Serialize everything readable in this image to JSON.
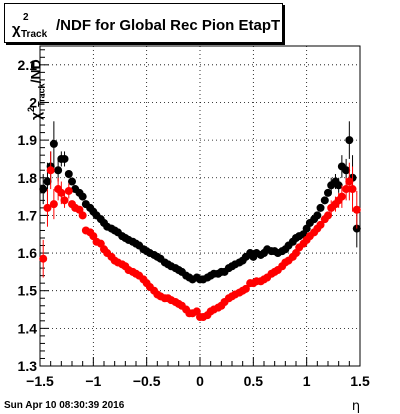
{
  "title": {
    "symbol": "χ",
    "superscript": "2",
    "subscript": "Track",
    "text": "/NDF for Global Rec Pion EtapT"
  },
  "footer_timestamp": "Sun Apr 10 08:30:39 2016",
  "chart_data": {
    "type": "scatter",
    "title": "χ²Track/NDF for Global Rec Pion EtapT",
    "xlabel": "η",
    "ylabel": "χ²Track/NDF",
    "xlim": [
      -1.5,
      1.5
    ],
    "ylim": [
      1.3,
      2.15
    ],
    "x_ticks": [
      -1.5,
      -1,
      -0.5,
      0,
      0.5,
      1,
      1.5
    ],
    "x_tick_labels": [
      "−1.5",
      "−1",
      "−0.5",
      "0",
      "0.5",
      "1",
      "1.5"
    ],
    "y_ticks": [
      1.3,
      1.4,
      1.5,
      1.6,
      1.7,
      1.8,
      1.9,
      2,
      2.1
    ],
    "y_tick_labels": [
      "1.3",
      "1.4",
      "1.5",
      "1.6",
      "1.7",
      "1.8",
      "1.9",
      "2",
      "2.1"
    ],
    "grid": true,
    "series": [
      {
        "color": "#000000",
        "x": [
          -1.47,
          -1.43,
          -1.4,
          -1.37,
          -1.33,
          -1.3,
          -1.27,
          -1.23,
          -1.2,
          -1.17,
          -1.13,
          -1.1,
          -1.07,
          -1.03,
          -1.0,
          -0.97,
          -0.93,
          -0.9,
          -0.87,
          -0.83,
          -0.8,
          -0.77,
          -0.73,
          -0.7,
          -0.67,
          -0.63,
          -0.6,
          -0.57,
          -0.53,
          -0.5,
          -0.47,
          -0.43,
          -0.4,
          -0.37,
          -0.33,
          -0.3,
          -0.27,
          -0.23,
          -0.2,
          -0.17,
          -0.13,
          -0.1,
          -0.07,
          -0.03,
          0.0,
          0.03,
          0.07,
          0.1,
          0.13,
          0.17,
          0.2,
          0.23,
          0.27,
          0.3,
          0.33,
          0.37,
          0.4,
          0.43,
          0.47,
          0.5,
          0.53,
          0.57,
          0.6,
          0.63,
          0.67,
          0.7,
          0.73,
          0.77,
          0.8,
          0.83,
          0.87,
          0.9,
          0.93,
          0.97,
          1.0,
          1.03,
          1.07,
          1.1,
          1.13,
          1.17,
          1.2,
          1.23,
          1.27,
          1.3,
          1.33,
          1.37,
          1.4,
          1.43,
          1.47
        ],
        "y": [
          1.77,
          1.79,
          1.83,
          1.89,
          1.82,
          1.85,
          1.85,
          1.81,
          1.79,
          1.77,
          1.76,
          1.75,
          1.73,
          1.72,
          1.71,
          1.7,
          1.69,
          1.68,
          1.67,
          1.665,
          1.66,
          1.655,
          1.645,
          1.64,
          1.635,
          1.63,
          1.625,
          1.62,
          1.61,
          1.605,
          1.6,
          1.595,
          1.59,
          1.585,
          1.575,
          1.57,
          1.565,
          1.56,
          1.555,
          1.55,
          1.54,
          1.535,
          1.53,
          1.535,
          1.53,
          1.53,
          1.535,
          1.54,
          1.545,
          1.545,
          1.55,
          1.55,
          1.56,
          1.565,
          1.57,
          1.575,
          1.58,
          1.59,
          1.6,
          1.59,
          1.6,
          1.595,
          1.6,
          1.61,
          1.605,
          1.605,
          1.6,
          1.605,
          1.61,
          1.62,
          1.63,
          1.64,
          1.645,
          1.65,
          1.665,
          1.68,
          1.69,
          1.7,
          1.72,
          1.74,
          1.76,
          1.78,
          1.79,
          1.78,
          1.83,
          1.82,
          1.9,
          1.8,
          1.665
        ],
        "err": [
          0.04,
          0.05,
          0.04,
          0.06,
          0.03,
          0.02,
          0.02,
          0.01,
          0.01,
          0.01,
          0.01,
          0.01,
          0.01,
          0.01,
          0.01,
          0.01,
          0.01,
          0.01,
          0.01,
          0.01,
          0.01,
          0.01,
          0.01,
          0.01,
          0.01,
          0.01,
          0.01,
          0.01,
          0.01,
          0.01,
          0.01,
          0.01,
          0.01,
          0.01,
          0.01,
          0.01,
          0.01,
          0.01,
          0.01,
          0.01,
          0.01,
          0.01,
          0.01,
          0.01,
          0.01,
          0.01,
          0.01,
          0.01,
          0.01,
          0.01,
          0.01,
          0.01,
          0.01,
          0.01,
          0.01,
          0.01,
          0.01,
          0.01,
          0.01,
          0.01,
          0.01,
          0.01,
          0.01,
          0.01,
          0.01,
          0.01,
          0.01,
          0.01,
          0.01,
          0.01,
          0.01,
          0.01,
          0.01,
          0.01,
          0.01,
          0.01,
          0.01,
          0.01,
          0.01,
          0.01,
          0.01,
          0.02,
          0.02,
          0.02,
          0.03,
          0.03,
          0.05,
          0.06,
          0.05
        ]
      },
      {
        "color": "#ff0000",
        "x": [
          -1.47,
          -1.43,
          -1.4,
          -1.37,
          -1.33,
          -1.3,
          -1.27,
          -1.23,
          -1.2,
          -1.17,
          -1.13,
          -1.1,
          -1.07,
          -1.03,
          -1.0,
          -0.97,
          -0.93,
          -0.9,
          -0.87,
          -0.83,
          -0.8,
          -0.77,
          -0.73,
          -0.7,
          -0.67,
          -0.63,
          -0.6,
          -0.57,
          -0.53,
          -0.5,
          -0.47,
          -0.43,
          -0.4,
          -0.37,
          -0.33,
          -0.3,
          -0.27,
          -0.23,
          -0.2,
          -0.17,
          -0.13,
          -0.1,
          -0.07,
          -0.03,
          0.0,
          0.03,
          0.07,
          0.1,
          0.13,
          0.17,
          0.2,
          0.23,
          0.27,
          0.3,
          0.33,
          0.37,
          0.4,
          0.43,
          0.47,
          0.5,
          0.53,
          0.57,
          0.6,
          0.63,
          0.67,
          0.7,
          0.73,
          0.77,
          0.8,
          0.83,
          0.87,
          0.9,
          0.93,
          0.97,
          1.0,
          1.03,
          1.07,
          1.1,
          1.13,
          1.17,
          1.2,
          1.23,
          1.27,
          1.3,
          1.33,
          1.37,
          1.4,
          1.43,
          1.47
        ],
        "y": [
          1.585,
          1.72,
          1.82,
          1.73,
          1.77,
          1.76,
          1.74,
          1.765,
          1.73,
          1.72,
          1.715,
          1.7,
          1.66,
          1.655,
          1.645,
          1.63,
          1.625,
          1.61,
          1.6,
          1.59,
          1.58,
          1.575,
          1.57,
          1.565,
          1.555,
          1.55,
          1.545,
          1.54,
          1.53,
          1.52,
          1.51,
          1.5,
          1.49,
          1.485,
          1.48,
          1.48,
          1.475,
          1.47,
          1.465,
          1.46,
          1.45,
          1.44,
          1.44,
          1.445,
          1.43,
          1.43,
          1.435,
          1.445,
          1.45,
          1.455,
          1.46,
          1.47,
          1.48,
          1.485,
          1.49,
          1.495,
          1.5,
          1.505,
          1.52,
          1.52,
          1.525,
          1.525,
          1.53,
          1.535,
          1.545,
          1.55,
          1.555,
          1.565,
          1.575,
          1.58,
          1.59,
          1.6,
          1.615,
          1.625,
          1.635,
          1.645,
          1.655,
          1.665,
          1.675,
          1.69,
          1.7,
          1.72,
          1.73,
          1.74,
          1.75,
          1.77,
          1.79,
          1.77,
          1.715
        ],
        "err": [
          0.05,
          0.05,
          0.05,
          0.04,
          0.03,
          0.03,
          0.02,
          0.02,
          0.01,
          0.01,
          0.01,
          0.01,
          0.01,
          0.01,
          0.01,
          0.01,
          0.01,
          0.01,
          0.01,
          0.01,
          0.01,
          0.01,
          0.01,
          0.01,
          0.01,
          0.01,
          0.01,
          0.01,
          0.01,
          0.01,
          0.01,
          0.01,
          0.01,
          0.01,
          0.01,
          0.01,
          0.01,
          0.01,
          0.01,
          0.01,
          0.01,
          0.01,
          0.01,
          0.01,
          0.01,
          0.01,
          0.01,
          0.01,
          0.01,
          0.01,
          0.01,
          0.01,
          0.01,
          0.01,
          0.01,
          0.01,
          0.01,
          0.01,
          0.01,
          0.01,
          0.01,
          0.01,
          0.01,
          0.01,
          0.01,
          0.01,
          0.01,
          0.01,
          0.01,
          0.01,
          0.01,
          0.01,
          0.01,
          0.01,
          0.01,
          0.01,
          0.01,
          0.01,
          0.01,
          0.01,
          0.01,
          0.02,
          0.02,
          0.02,
          0.03,
          0.03,
          0.05,
          0.06,
          0.05
        ]
      }
    ]
  }
}
